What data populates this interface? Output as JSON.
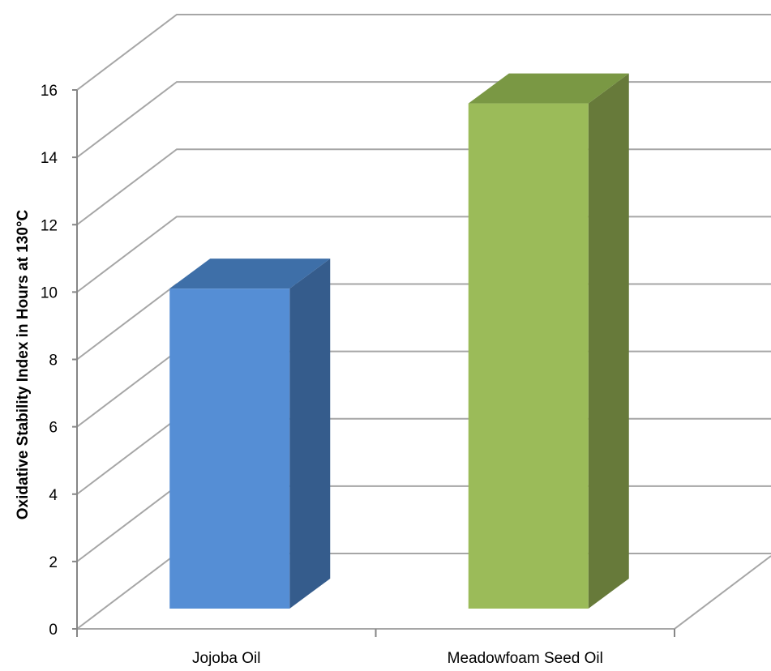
{
  "chart_data": {
    "type": "bar",
    "title": "",
    "xlabel": "",
    "ylabel": "Oxidative Stability Index in Hours at 130°C",
    "categories": [
      "Jojoba Oil",
      "Meadowfoam Seed Oil"
    ],
    "values": [
      9.5,
      15.0
    ],
    "ylim": [
      0,
      16
    ],
    "yticks": [
      "0",
      "2",
      "4",
      "6",
      "8",
      "10",
      "12",
      "14",
      "16"
    ],
    "grid": true,
    "style": "3d-column",
    "colors": {
      "bars": [
        "#558ED5",
        "#9BBB59"
      ],
      "bars_side": [
        "#355C8C",
        "#677A3A"
      ],
      "bars_top": [
        "#3E6FA8",
        "#7A9844"
      ],
      "grid": "#A6A6A6",
      "axis": "#868686"
    }
  }
}
